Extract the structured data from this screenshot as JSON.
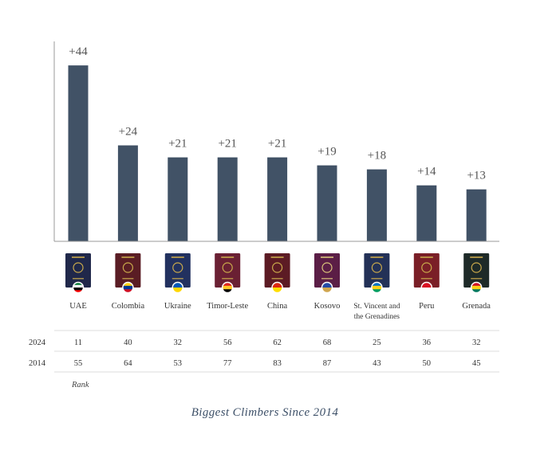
{
  "colors": {
    "bar": "#415266",
    "axis": "#999999",
    "row_line": "#dddddd"
  },
  "chart_data": {
    "type": "bar",
    "categories": [
      "UAE",
      "Colombia",
      "Ukraine",
      "Timor-Leste",
      "China",
      "Kosovo",
      "St. Vincent and the Grenadines",
      "Peru",
      "Grenada"
    ],
    "category_lines": [
      [
        "UAE"
      ],
      [
        "Colombia"
      ],
      [
        "Ukraine"
      ],
      [
        "Timor-Leste"
      ],
      [
        "China"
      ],
      [
        "Kosovo"
      ],
      [
        "St. Vincent and",
        "the Grenadines"
      ],
      [
        "Peru"
      ],
      [
        "Grenada"
      ]
    ],
    "values": [
      44,
      24,
      21,
      21,
      21,
      19,
      18,
      14,
      13
    ],
    "value_labels": [
      "+44",
      "+24",
      "+21",
      "+21",
      "+21",
      "+19",
      "+18",
      "+14",
      "+13"
    ],
    "ylim": [
      0,
      50
    ],
    "grid": false,
    "table": {
      "rows": [
        {
          "year": "2024",
          "values": [
            "11",
            "40",
            "32",
            "56",
            "62",
            "68",
            "25",
            "36",
            "32"
          ]
        },
        {
          "year": "2014",
          "values": [
            "55",
            "64",
            "53",
            "77",
            "83",
            "87",
            "43",
            "50",
            "45"
          ]
        }
      ],
      "note": "Rank"
    },
    "caption": "Biggest Climbers Since 2014"
  },
  "passports": [
    {
      "icon": "uae-passport-icon",
      "cover": "#20284a",
      "emblem": "#c9a94b",
      "flag": [
        "#00732f",
        "#ffffff",
        "#000000",
        "#ff0000"
      ]
    },
    {
      "icon": "colombia-passport-icon",
      "cover": "#5a1d24",
      "emblem": "#c9a94b",
      "flag": [
        "#fcd116",
        "#003893",
        "#ce1126"
      ]
    },
    {
      "icon": "ukraine-passport-icon",
      "cover": "#22315f",
      "emblem": "#c9a94b",
      "flag": [
        "#0057b7",
        "#ffd700"
      ]
    },
    {
      "icon": "timor-leste-passport-icon",
      "cover": "#6a2033",
      "emblem": "#c9a94b",
      "flag": [
        "#dc241f",
        "#ffc726",
        "#000000"
      ]
    },
    {
      "icon": "china-passport-icon",
      "cover": "#5c1b24",
      "emblem": "#c9a94b",
      "flag": [
        "#de2910",
        "#ffde00"
      ]
    },
    {
      "icon": "kosovo-passport-icon",
      "cover": "#5b1e46",
      "emblem": "#d9c37a",
      "flag": [
        "#244aa5",
        "#d0a650"
      ]
    },
    {
      "icon": "st-vincent-passport-icon",
      "cover": "#233157",
      "emblem": "#c9a94b",
      "flag": [
        "#0072c6",
        "#fcd116",
        "#009e60"
      ]
    },
    {
      "icon": "peru-passport-icon",
      "cover": "#7a1f27",
      "emblem": "#c9a94b",
      "flag": [
        "#d91023",
        "#ffffff"
      ]
    },
    {
      "icon": "grenada-passport-icon",
      "cover": "#1e2a28",
      "emblem": "#c9a94b",
      "flag": [
        "#ce1126",
        "#fcd116",
        "#007a5e"
      ]
    }
  ]
}
